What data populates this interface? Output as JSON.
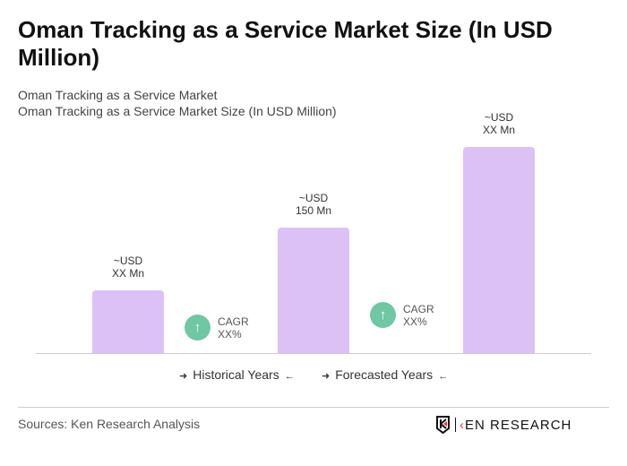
{
  "header": {
    "title": "Oman Tracking as a Service Market Size (In USD Million)",
    "subtitle1": "Oman Tracking as a Service Market",
    "subtitle2": "Oman Tracking as a Service Market Size (In USD Million)"
  },
  "chart_data": {
    "type": "bar",
    "title": "Oman Tracking as a Service Market Size (In USD Million)",
    "categories": [
      "",
      "",
      ""
    ],
    "values": [
      75,
      150,
      246
    ],
    "data_labels": [
      [
        "~USD",
        "XX Mn"
      ],
      [
        "~USD",
        "150 Mn"
      ],
      [
        "~USD",
        "XX Mn"
      ]
    ],
    "bar_color": "#dcc1f7",
    "grid": false,
    "cagr": [
      {
        "label": "CAGR",
        "value": "XX%"
      },
      {
        "label": "CAGR",
        "value": "XX%"
      }
    ],
    "legend": [
      {
        "label": "Historical Years"
      },
      {
        "label": "Forecasted Years"
      }
    ],
    "legend_position": "bottom"
  },
  "footer": {
    "source": "Sources: Ken Research Analysis",
    "logo_text": "KEN RESEARCH"
  },
  "colors": {
    "cagr_icon": "#6fc7a3",
    "logo_accent": "#e03a3e"
  }
}
